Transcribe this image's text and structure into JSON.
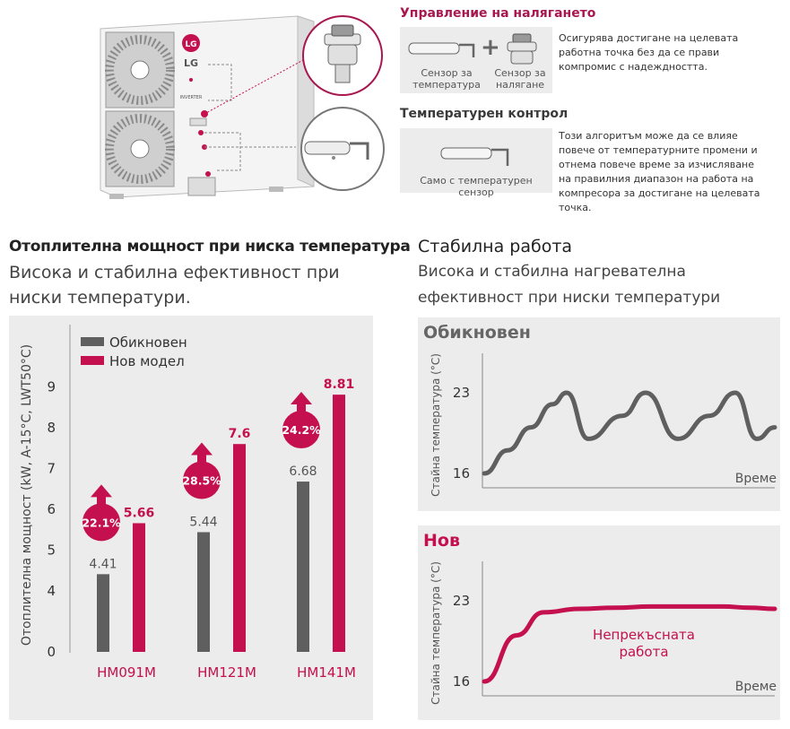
{
  "control": {
    "title1": "Управление на налягането",
    "sensor_temp_label": "Сензор за температура",
    "plus": "+",
    "sensor_press_label": "Сензор за налягане",
    "desc1": "Осигурява достигане на целевата работна точка без да се прави компромис с надеждността.",
    "title2": "Температурен контрол",
    "only_temp_label": "Само с температурен сензор",
    "desc2": "Този алгоритъм може да се влияе повече от температурните промени и отнема повече време за изчисляване на правилния диапазон на работа на компресора за достигане на целевата точка."
  },
  "unit": {
    "brand": "LG",
    "model_tag": "INVERTER"
  },
  "left": {
    "title": "Отоплителна мощност при ниска температура",
    "subtitle": "Висока и стабилна ефективност при ниски температури."
  },
  "right": {
    "title": "Стабилна работа",
    "subtitle": "Висока и стабилна нагревателна ефективност при ниски температури"
  },
  "colors": {
    "old": "#5f5f5f",
    "new": "#c4104e",
    "panel": "#ececec",
    "accent_red": "#a8174f"
  },
  "chart_data": [
    {
      "type": "bar",
      "ylabel": "Отоплителна мощност (kW, A-15°C, LWT50°C)",
      "yticks": [
        0,
        4,
        5,
        6,
        7,
        8,
        9
      ],
      "categories": [
        "HM091M",
        "HM121M",
        "HM141M"
      ],
      "series": [
        {
          "name": "Обикновен",
          "values": [
            4.41,
            5.44,
            6.68
          ],
          "color": "#5f5f5f"
        },
        {
          "name": "Нов модел",
          "values": [
            5.66,
            7.6,
            8.81
          ],
          "color": "#c4104e"
        }
      ],
      "value_labels": {
        "old": [
          "4.41",
          "5.44",
          "6.68"
        ],
        "new": [
          "5.66",
          "7.6",
          "8.81"
        ]
      },
      "improvements": [
        "22.1%",
        "28.5%",
        "24.2%"
      ],
      "legend": "top-left"
    },
    {
      "type": "line",
      "title": "Обикновен",
      "ylabel": "Стайна температура (°C)",
      "xlabel": "Време",
      "yticks": [
        "23",
        "16"
      ],
      "series": [
        {
          "values": [
            16,
            18,
            20,
            22,
            23,
            19,
            21,
            23,
            19,
            21,
            23,
            19,
            20
          ]
        }
      ]
    },
    {
      "type": "line",
      "title": "Нов",
      "ylabel": "Стайна температура (°C)",
      "xlabel": "Време",
      "yticks": [
        "23",
        "16"
      ],
      "annotation": "Непрекъсната работа",
      "series": [
        {
          "values": [
            16,
            20,
            22,
            22.3,
            22.4,
            22.5,
            22.5,
            22.5,
            22.4,
            22.3
          ]
        }
      ]
    }
  ]
}
